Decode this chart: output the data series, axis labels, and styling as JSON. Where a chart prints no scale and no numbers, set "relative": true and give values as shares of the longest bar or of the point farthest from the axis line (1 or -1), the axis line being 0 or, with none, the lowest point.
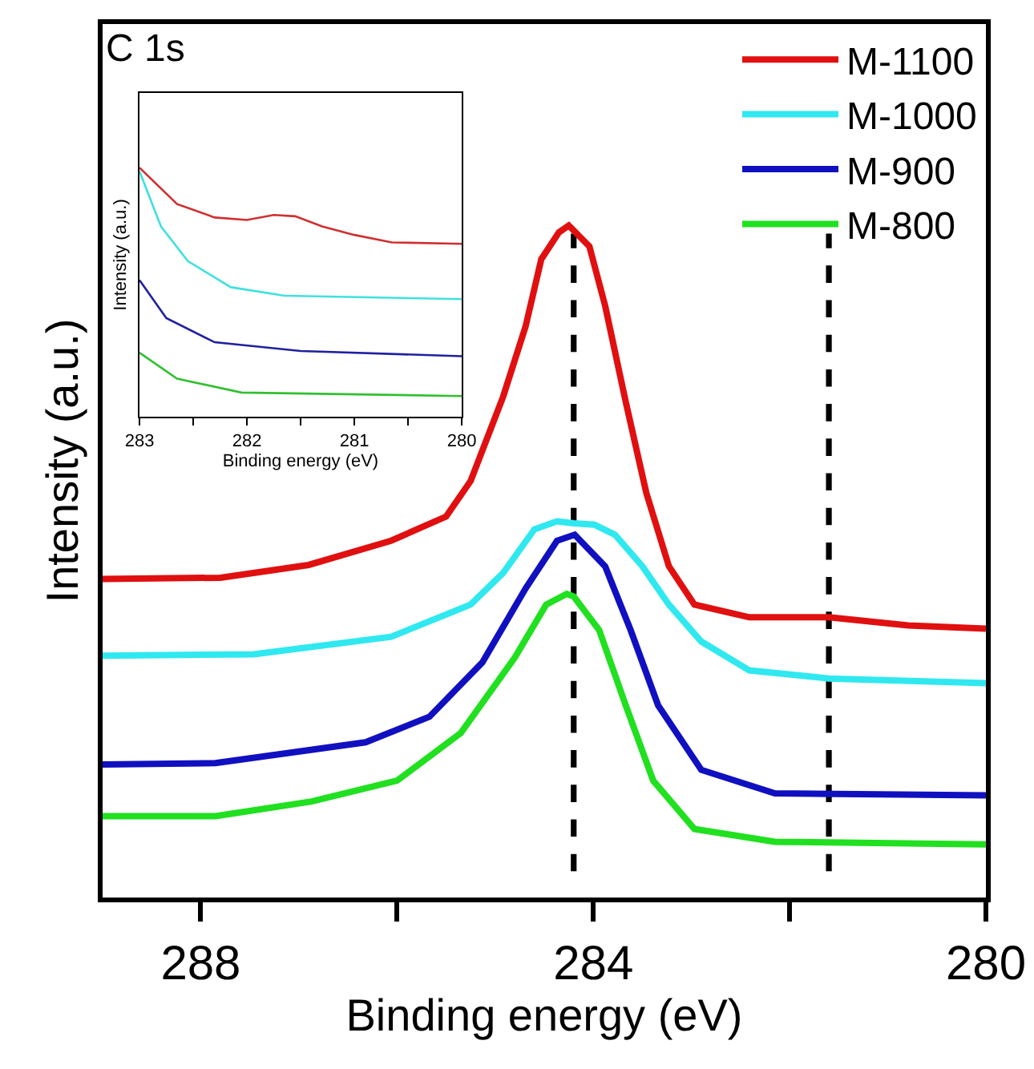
{
  "chart_data": [
    {
      "type": "line",
      "xlabel": "Binding energy (eV)",
      "ylabel": "Intensity (a.u.)",
      "annotations": [
        "C 1s"
      ],
      "relative": true,
      "xlim": [
        289,
        280
      ],
      "xticks": [
        288,
        {
          "value": 286,
          "label": null
        },
        284,
        {
          "value": 282,
          "label": null
        },
        280
      ],
      "legend": "top right",
      "grid": false,
      "ref_lines": [
        {
          "axis": "x",
          "value": 284.2,
          "line_style": "dashed",
          "color": "#000000"
        },
        {
          "axis": "x",
          "value": 281.6,
          "line_style": "dashed",
          "color": "#000000"
        }
      ],
      "series": [
        {
          "name": "M-1100",
          "color": "#e01010",
          "x": [
            289,
            287.8,
            286.9,
            286.06,
            285.5,
            285.25,
            284.92,
            284.69,
            284.53,
            284.35,
            284.25,
            284.04,
            283.88,
            283.67,
            283.46,
            283.23,
            282.97,
            282.41,
            281.6,
            280.79,
            280
          ],
          "values": [
            0.474,
            0.476,
            0.495,
            0.531,
            0.567,
            0.62,
            0.745,
            0.85,
            0.95,
            0.99,
            1,
            0.969,
            0.881,
            0.738,
            0.602,
            0.493,
            0.436,
            0.417,
            0.417,
            0.405,
            0.4
          ]
        },
        {
          "name": "M-1000",
          "color": "#30e8f0",
          "x": [
            289,
            287.46,
            286.06,
            285.25,
            284.92,
            284.6,
            284.37,
            284.2,
            283.99,
            283.78,
            283.5,
            283.23,
            282.9,
            282.41,
            281.6,
            280
          ],
          "values": [
            0.36,
            0.362,
            0.388,
            0.436,
            0.483,
            0.548,
            0.56,
            0.557,
            0.555,
            0.54,
            0.493,
            0.436,
            0.381,
            0.338,
            0.326,
            0.319
          ]
        },
        {
          "name": "M-900",
          "color": "#1010c0",
          "x": [
            289,
            287.85,
            286.32,
            285.67,
            285.13,
            284.69,
            284.37,
            284.19,
            283.88,
            283.62,
            283.34,
            282.9,
            282.15,
            280
          ],
          "values": [
            0.198,
            0.2,
            0.231,
            0.269,
            0.35,
            0.46,
            0.531,
            0.54,
            0.493,
            0.398,
            0.286,
            0.19,
            0.155,
            0.152
          ]
        },
        {
          "name": "M-800",
          "color": "#20e020",
          "x": [
            289,
            287.85,
            286.87,
            286,
            285.35,
            284.8,
            284.48,
            284.27,
            284.2,
            283.94,
            283.67,
            283.39,
            282.97,
            282.15,
            280
          ],
          "values": [
            0.121,
            0.121,
            0.143,
            0.174,
            0.245,
            0.357,
            0.436,
            0.452,
            0.448,
            0.398,
            0.286,
            0.174,
            0.102,
            0.083,
            0.079
          ]
        }
      ]
    },
    {
      "type": "line",
      "xlabel": "Binding energy (eV)",
      "ylabel": "Intensity (a.u.)",
      "relative": true,
      "xlim": [
        283,
        280
      ],
      "xticks": [
        283,
        {
          "value": 282.5,
          "label": null
        },
        282,
        {
          "value": 281.5,
          "label": null
        },
        281,
        {
          "value": 280.5,
          "label": null
        },
        280
      ],
      "grid": false,
      "series": [
        {
          "color": "#d03030",
          "x": [
            283,
            282.65,
            282.3,
            282,
            281.75,
            281.55,
            281.3,
            281,
            280.65,
            280
          ],
          "values": [
            1,
            0.854,
            0.8,
            0.79,
            0.81,
            0.805,
            0.764,
            0.73,
            0.7,
            0.694
          ]
        },
        {
          "color": "#40e0e0",
          "x": [
            283,
            282.8,
            282.55,
            282.15,
            281.65,
            280
          ],
          "values": [
            0.986,
            0.764,
            0.625,
            0.52,
            0.486,
            0.472
          ]
        },
        {
          "color": "#2020a0",
          "x": [
            283,
            282.75,
            282.3,
            281.5,
            280
          ],
          "values": [
            0.549,
            0.396,
            0.299,
            0.264,
            0.243
          ]
        },
        {
          "color": "#30c030",
          "x": [
            283,
            282.65,
            282.05,
            280
          ],
          "values": [
            0.257,
            0.153,
            0.097,
            0.083
          ]
        }
      ]
    }
  ]
}
